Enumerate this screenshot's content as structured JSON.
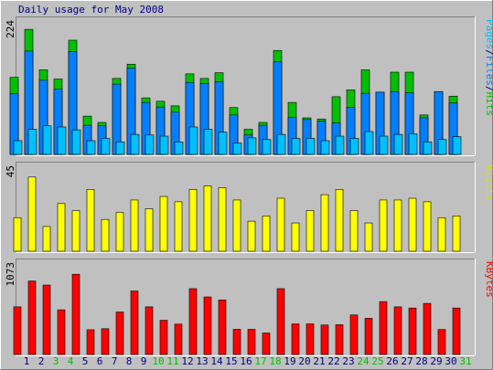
{
  "chart_data": {
    "type": "bar",
    "title": "Daily usage for May 2008",
    "days": [
      "1",
      "2",
      "3",
      "4",
      "5",
      "6",
      "7",
      "8",
      "9",
      "10",
      "11",
      "12",
      "13",
      "14",
      "15",
      "16",
      "17",
      "18",
      "19",
      "20",
      "21",
      "22",
      "23",
      "24",
      "25",
      "26",
      "27",
      "28",
      "29",
      "30",
      "31"
    ],
    "weekend_days": [
      "3",
      "4",
      "10",
      "11",
      "17",
      "18",
      "24",
      "25",
      "31"
    ],
    "panels": [
      {
        "name": "hits-files-pages",
        "ymax_label": "224",
        "ylim": [
          0,
          224
        ],
        "legend": [
          {
            "text": "Pages",
            "color": "#00c0ff"
          },
          {
            "text": "/",
            "color": "#000080"
          },
          {
            "text": "Files",
            "color": "#0080ff"
          },
          {
            "text": "/",
            "color": "#000080"
          },
          {
            "text": "Hits",
            "color": "#00c000"
          }
        ],
        "series": [
          {
            "name": "Hits",
            "color": "#00c000",
            "values": [
              135,
              219,
              148,
              132,
              200,
              67,
              56,
              133,
              158,
              99,
              93,
              85,
              141,
              133,
              143,
              82,
              44,
              56,
              182,
              91,
              64,
              62,
              101,
              113,
              148,
              109,
              144,
              144,
              69,
              110,
              102
            ]
          },
          {
            "name": "Files",
            "color": "#0080ff",
            "values": [
              106,
              181,
              130,
              114,
              180,
              51,
              50,
              123,
              151,
              91,
              83,
              74,
              126,
              124,
              127,
              69,
              34,
              51,
              162,
              65,
              61,
              58,
              55,
              82,
              107,
              109,
              110,
              108,
              64,
              110,
              90
            ]
          },
          {
            "name": "Pages",
            "color": "#00c0ff",
            "values": [
              24,
              44,
              50,
              48,
              43,
              24,
              28,
              22,
              35,
              34,
              32,
              22,
              48,
              44,
              39,
              20,
              29,
              26,
              35,
              28,
              28,
              24,
              32,
              28,
              40,
              32,
              35,
              36,
              22,
              26,
              31
            ]
          }
        ]
      },
      {
        "name": "visits",
        "ymax_label": "45",
        "ylim": [
          0,
          45
        ],
        "legend": [
          {
            "text": "Visits",
            "color": "#e0e000"
          }
        ],
        "series": [
          {
            "name": "Visits",
            "color": "#ffff00",
            "values": [
              19,
              42,
              14,
              27,
              23,
              35,
              18,
              22,
              29,
              24,
              31,
              28,
              35,
              37,
              36,
              29,
              17,
              20,
              30,
              16,
              23,
              32,
              35,
              23,
              16,
              29,
              29,
              30,
              28,
              19,
              20
            ]
          }
        ]
      },
      {
        "name": "kbytes",
        "ymax_label": "1073",
        "ylim": [
          0,
          1073
        ],
        "legend": [
          {
            "text": "KBytes",
            "color": "#ff0000"
          }
        ],
        "series": [
          {
            "name": "KBytes",
            "color": "#ff0000",
            "values": [
              595,
              918,
              867,
              558,
              1002,
              309,
              322,
              530,
              793,
              595,
              427,
              379,
              822,
              719,
              681,
              314,
              314,
              268,
              822,
              382,
              382,
              368,
              372,
              494,
              452,
              661,
              595,
              580,
              638,
              312,
              580
            ]
          }
        ]
      }
    ],
    "colors": {
      "background": "#c0c0c0",
      "frame_dark": "#808080",
      "weekday_label": "#000080",
      "weekend_label": "#00c000"
    }
  }
}
